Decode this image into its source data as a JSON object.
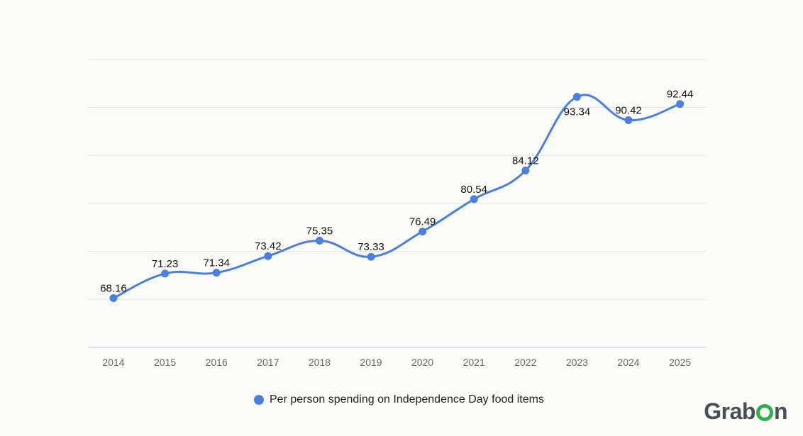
{
  "chart_data": {
    "type": "line",
    "categories": [
      "2014",
      "2015",
      "2016",
      "2017",
      "2018",
      "2019",
      "2020",
      "2021",
      "2022",
      "2023",
      "2024",
      "2025"
    ],
    "series": [
      {
        "name": "Per person spending on Independence Day food items",
        "values": [
          68.16,
          71.23,
          71.34,
          73.42,
          75.35,
          73.33,
          76.49,
          80.54,
          84.12,
          93.34,
          90.42,
          92.44
        ],
        "color": "#4a7fe0"
      }
    ],
    "title": "",
    "xlabel": "",
    "ylabel": "",
    "ylim": [
      62,
      98
    ],
    "grid": true,
    "legend": "bottom-center"
  },
  "logo": {
    "part1": "Grab",
    "part2": "n"
  }
}
